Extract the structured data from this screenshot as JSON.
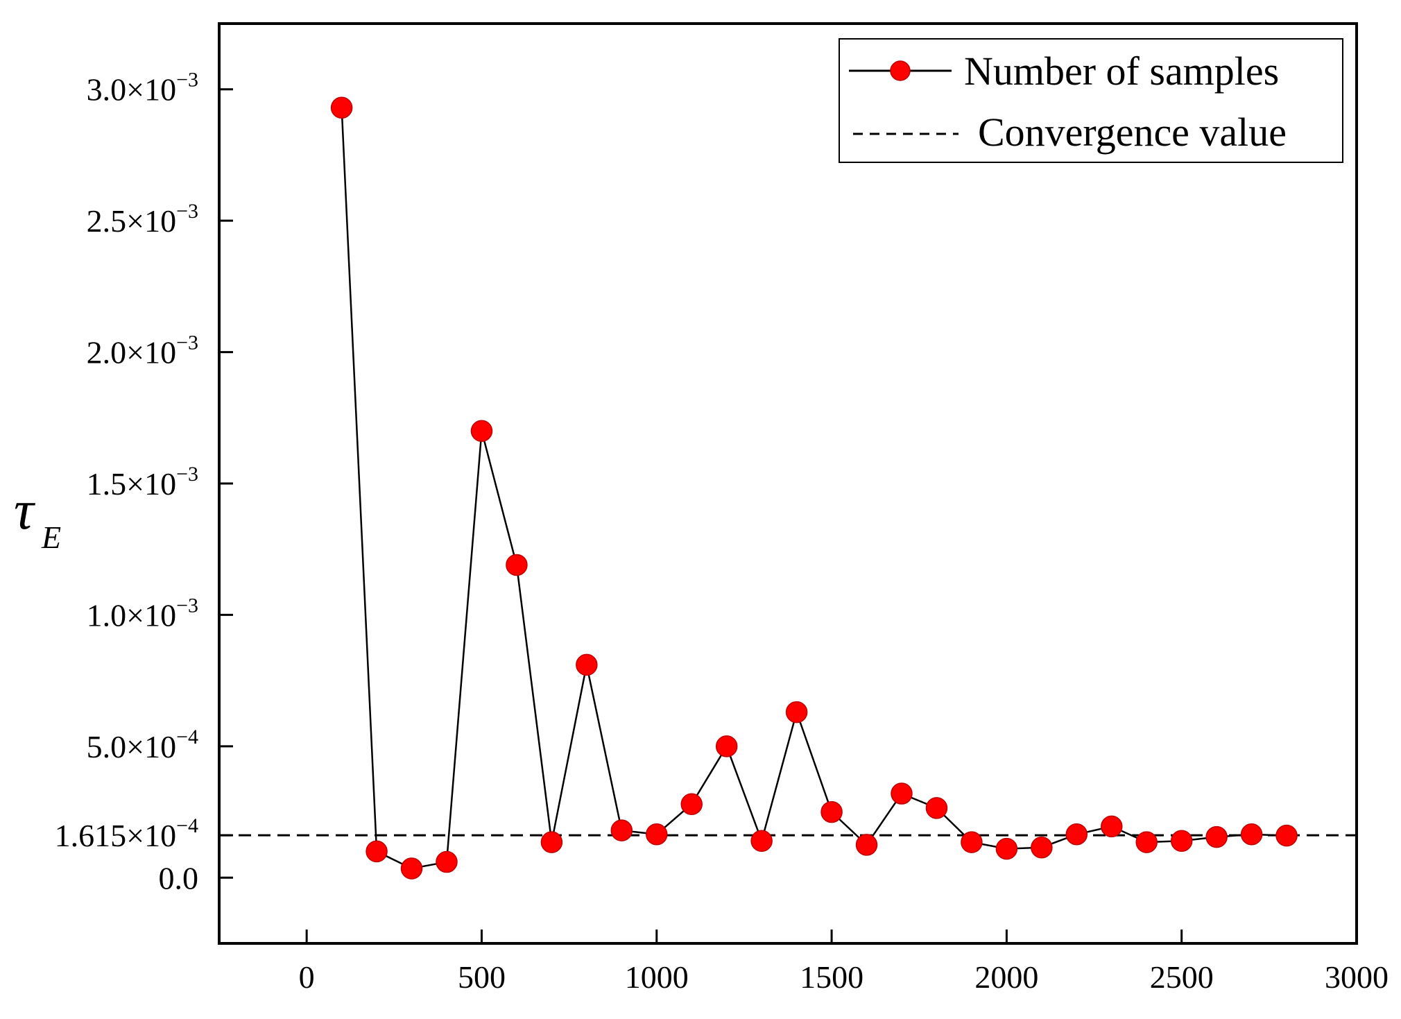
{
  "chart_data": {
    "type": "line",
    "title": "",
    "xlabel": "",
    "ylabel": "τ",
    "ylabel_subscript": "E",
    "xlim": [
      -250,
      3000
    ],
    "ylim": [
      -0.00025,
      0.00325
    ],
    "xticks": [
      0,
      500,
      1000,
      1500,
      2000,
      2500,
      3000
    ],
    "xtick_labels": [
      "0",
      "500",
      "1000",
      "1500",
      "2000",
      "2500",
      "3000"
    ],
    "yticks": [
      {
        "value": 0.0,
        "base": "0.0",
        "exp": ""
      },
      {
        "value": 0.0001615,
        "base": "1.615×10",
        "exp": "−4"
      },
      {
        "value": 0.0005,
        "base": "5.0×10",
        "exp": "−4"
      },
      {
        "value": 0.001,
        "base": "1.0×10",
        "exp": "−3"
      },
      {
        "value": 0.0015,
        "base": "1.5×10",
        "exp": "−3"
      },
      {
        "value": 0.002,
        "base": "2.0×10",
        "exp": "−3"
      },
      {
        "value": 0.0025,
        "base": "2.5×10",
        "exp": "−3"
      },
      {
        "value": 0.003,
        "base": "3.0×10",
        "exp": "−3"
      }
    ],
    "grid": false,
    "legend_position": "top-right",
    "series": [
      {
        "name": "Number of samples",
        "color": "#ff0000",
        "line_color": "#000000",
        "x": [
          100,
          200,
          300,
          400,
          500,
          600,
          700,
          800,
          900,
          1000,
          1100,
          1200,
          1300,
          1400,
          1500,
          1600,
          1700,
          1800,
          1900,
          2000,
          2100,
          2200,
          2300,
          2400,
          2500,
          2600,
          2700,
          2800
        ],
        "y": [
          0.00293,
          0.0001,
          3.5e-05,
          6e-05,
          0.0017,
          0.00119,
          0.000135,
          0.00081,
          0.00018,
          0.000165,
          0.00028,
          0.0005,
          0.00014,
          0.00063,
          0.00025,
          0.000125,
          0.00032,
          0.000265,
          0.000135,
          0.00011,
          0.000115,
          0.000165,
          0.000195,
          0.000135,
          0.00014,
          0.000155,
          0.000165,
          0.00016
        ]
      }
    ],
    "reference_lines": [
      {
        "name": "Convergence value",
        "value": 0.0001615,
        "style": "dashed",
        "color": "#000000"
      }
    ]
  }
}
